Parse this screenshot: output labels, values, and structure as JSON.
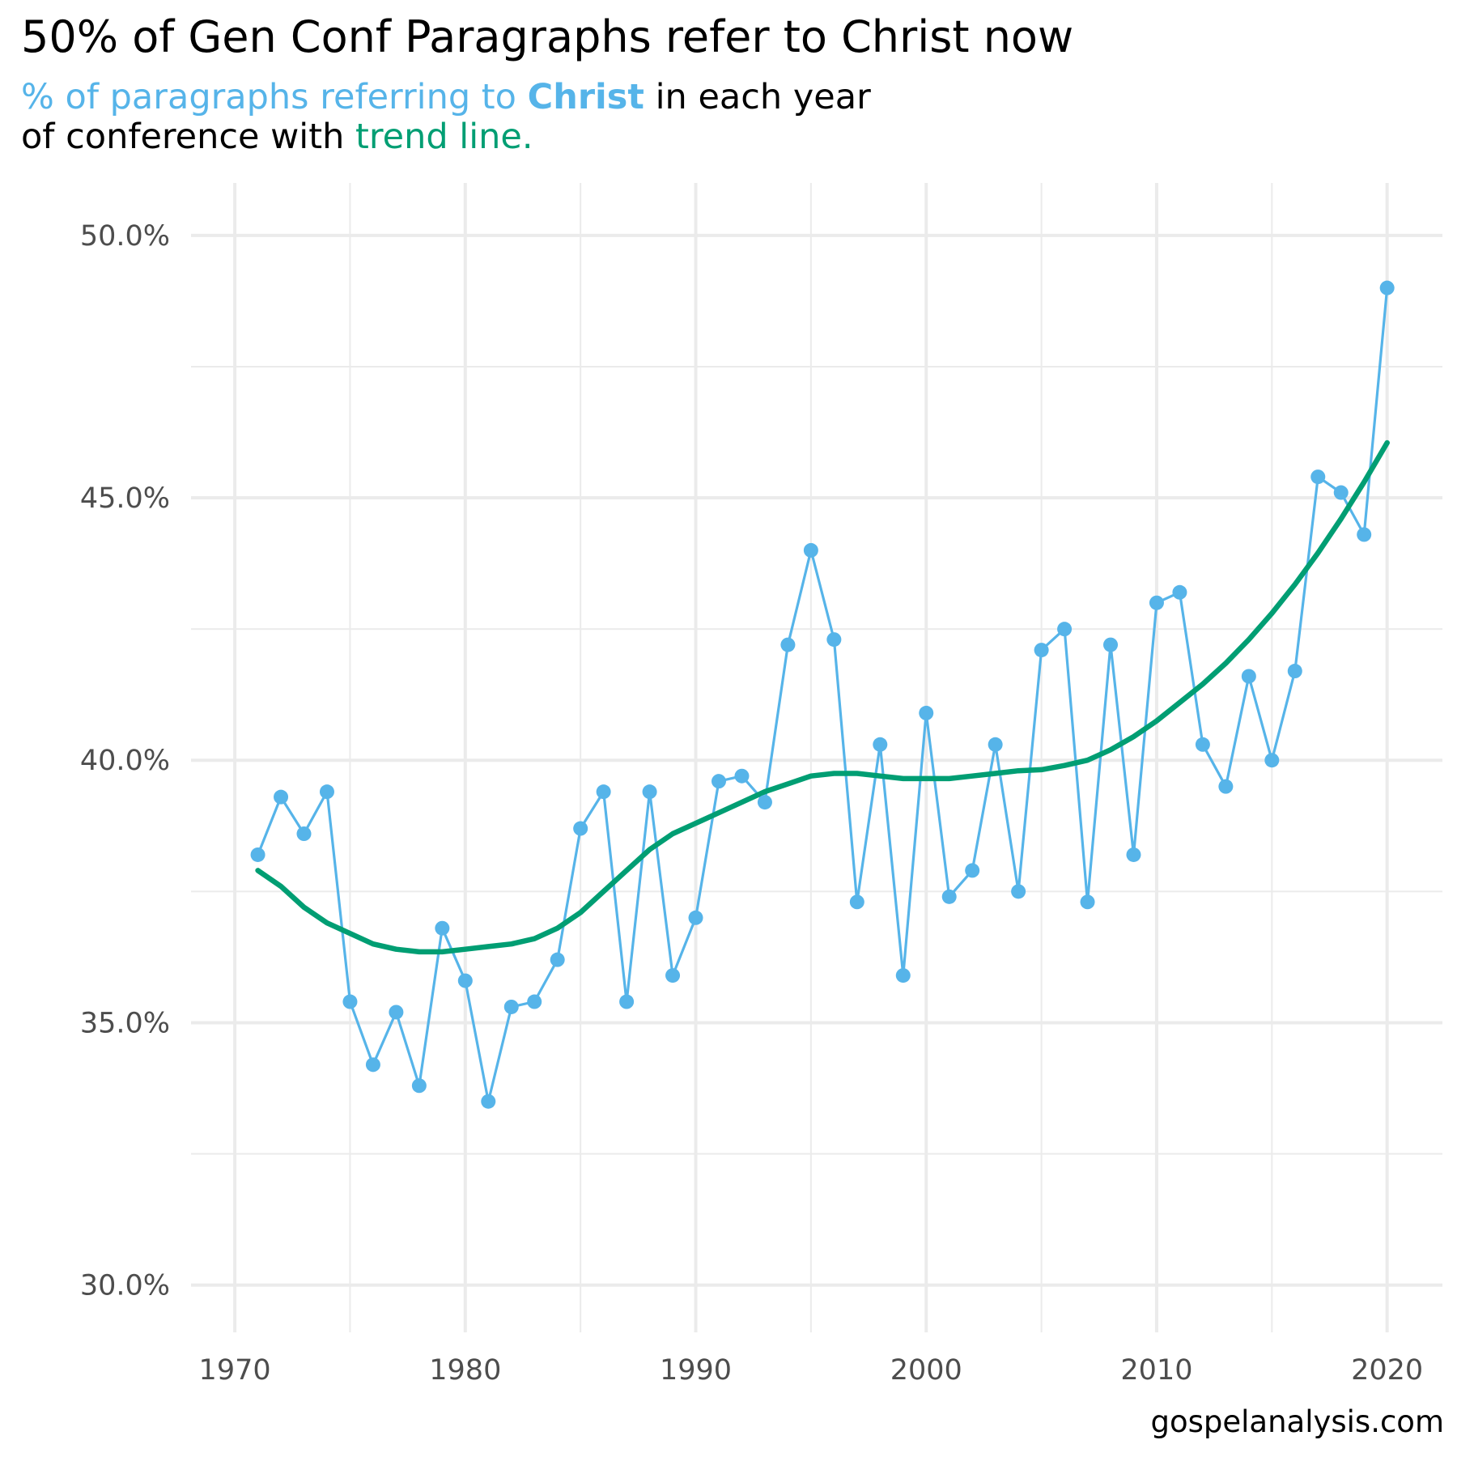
{
  "title": "50% of Gen Conf Paragraphs refer to Christ now",
  "subtitle": {
    "part1": "% of paragraphs referring to ",
    "part2": "Christ",
    "part3": " in each year",
    "part4": "of conference with ",
    "part5": "trend line."
  },
  "caption": "gospelanalysis.com",
  "colors": {
    "series": "#56b4e9",
    "trend": "#009e73",
    "grid": "#ebebeb"
  },
  "chart_data": {
    "type": "line",
    "title": "50% of Gen Conf Paragraphs refer to Christ now",
    "xlabel": "",
    "ylabel": "",
    "xlim": [
      1968.1,
      2022.4
    ],
    "ylim": [
      29.1,
      51.0
    ],
    "grid": true,
    "legend": "none",
    "x_ticks": [
      1970,
      1980,
      1990,
      2000,
      2010,
      2020
    ],
    "y_ticks": [
      30,
      35,
      40,
      45,
      50
    ],
    "y_tick_labels": [
      "30.0%",
      "35.0%",
      "40.0%",
      "45.0%",
      "50.0%"
    ],
    "series": [
      {
        "name": "",
        "kind": "line+points",
        "x": [
          1971,
          1972,
          1973,
          1974,
          1975,
          1976,
          1977,
          1978,
          1979,
          1980,
          1981,
          1982,
          1983,
          1984,
          1985,
          1986,
          1987,
          1988,
          1989,
          1990,
          1991,
          1992,
          1993,
          1994,
          1995,
          1996,
          1997,
          1998,
          1999,
          2000,
          2001,
          2002,
          2003,
          2004,
          2005,
          2006,
          2007,
          2008,
          2009,
          2010,
          2011,
          2012,
          2013,
          2014,
          2015,
          2016,
          2017,
          2018,
          2019,
          2020
        ],
        "y": [
          38.2,
          39.3,
          38.6,
          39.4,
          35.4,
          34.2,
          35.2,
          33.8,
          36.8,
          35.8,
          33.5,
          35.3,
          35.4,
          36.2,
          38.7,
          39.4,
          35.4,
          39.4,
          35.9,
          37.0,
          39.6,
          39.7,
          39.2,
          42.2,
          44.0,
          42.3,
          37.3,
          40.3,
          35.9,
          40.9,
          37.4,
          37.9,
          40.3,
          37.5,
          42.1,
          42.5,
          37.3,
          42.2,
          38.2,
          43.0,
          43.2,
          40.3,
          39.5,
          41.6,
          40.0,
          41.7,
          45.4,
          45.1,
          44.3,
          49.0
        ]
      },
      {
        "name": "",
        "kind": "trend",
        "x": [
          1971,
          1972,
          1973,
          1974,
          1975,
          1976,
          1977,
          1978,
          1979,
          1980,
          1981,
          1982,
          1983,
          1984,
          1985,
          1986,
          1987,
          1988,
          1989,
          1990,
          1991,
          1992,
          1993,
          1994,
          1995,
          1996,
          1997,
          1998,
          1999,
          2000,
          2001,
          2002,
          2003,
          2004,
          2005,
          2006,
          2007,
          2008,
          2009,
          2010,
          2011,
          2012,
          2013,
          2014,
          2015,
          2016,
          2017,
          2018,
          2019,
          2020
        ],
        "y": [
          37.9,
          37.6,
          37.2,
          36.9,
          36.7,
          36.5,
          36.4,
          36.35,
          36.35,
          36.4,
          36.45,
          36.5,
          36.6,
          36.8,
          37.1,
          37.5,
          37.9,
          38.3,
          38.6,
          38.8,
          39.0,
          39.2,
          39.4,
          39.55,
          39.7,
          39.75,
          39.75,
          39.7,
          39.65,
          39.65,
          39.65,
          39.7,
          39.75,
          39.8,
          39.82,
          39.9,
          40.0,
          40.2,
          40.45,
          40.75,
          41.1,
          41.45,
          41.85,
          42.3,
          42.8,
          43.35,
          43.95,
          44.6,
          45.3,
          46.05
        ]
      }
    ]
  }
}
